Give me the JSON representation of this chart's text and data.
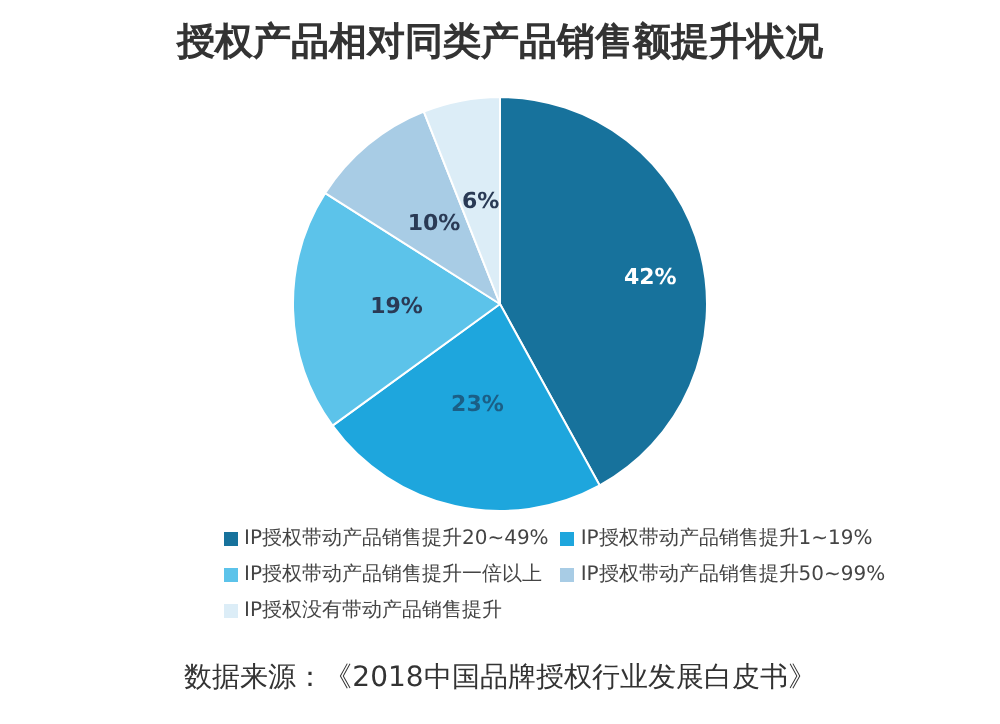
{
  "chart_data": {
    "type": "pie",
    "title": "授权产品相对同类产品销售额提升状况",
    "categories": [
      "IP授权带动产品销售提升20~49%",
      "IP授权带动产品销售提升1~19%",
      "IP授权带动产品销售提升一倍以上",
      "IP授权带动产品销售提升50~99%",
      "IP授权没有带动产品销售提升"
    ],
    "values": [
      42,
      23,
      19,
      10,
      6
    ],
    "colors": [
      "#17729c",
      "#1ea6dd",
      "#5cc3ea",
      "#a8cce5",
      "#dcedf7"
    ],
    "value_labels": [
      "42%",
      "23%",
      "19%",
      "10%",
      "6%"
    ],
    "legend": "bottom",
    "annotations": [
      "数据来源：《2018中国品牌授权行业发展白皮书》"
    ]
  }
}
